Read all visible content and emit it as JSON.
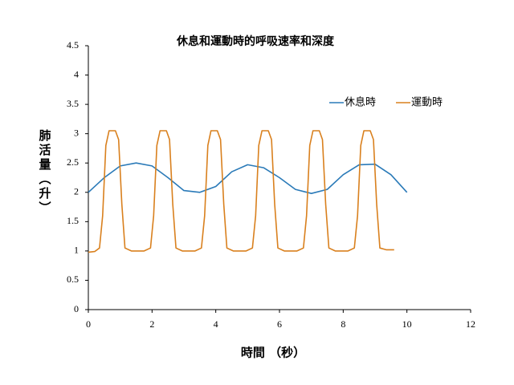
{
  "chart_data": {
    "type": "line",
    "title": "休息和運動時的呼吸速率和深度",
    "x_label": "時間 （秒）",
    "y_label": "肺活量（升）",
    "xlim": [
      0,
      12
    ],
    "xticks": [
      0,
      2,
      4,
      6,
      8,
      10,
      12
    ],
    "ylim": [
      0,
      4.5
    ],
    "yticks": [
      0,
      0.5,
      1,
      1.5,
      2,
      2.5,
      3,
      3.5,
      4,
      4.5
    ],
    "grid": false,
    "legend": "upper right",
    "series": [
      {
        "name": "休息時",
        "color": "#2a7ab8",
        "x": [
          0,
          0.5,
          1,
          1.5,
          2,
          2.5,
          3,
          3.5,
          4,
          4.5,
          5,
          5.5,
          6,
          6.5,
          7,
          7.5,
          8,
          8.5,
          9,
          9.5,
          10
        ],
        "values": [
          2.0,
          2.25,
          2.45,
          2.5,
          2.45,
          2.25,
          2.03,
          2.0,
          2.1,
          2.35,
          2.47,
          2.42,
          2.25,
          2.05,
          1.98,
          2.05,
          2.3,
          2.47,
          2.48,
          2.3,
          2.0
        ]
      },
      {
        "name": "運動時",
        "color": "#d9801e",
        "x": [
          0,
          0.2,
          0.35,
          0.45,
          0.55,
          0.65,
          0.85,
          0.95,
          1.05,
          1.15,
          1.35,
          1.75,
          1.95,
          2.05,
          2.15,
          2.25,
          2.45,
          2.55,
          2.65,
          2.75,
          2.95,
          3.35,
          3.55,
          3.65,
          3.75,
          3.85,
          4.05,
          4.15,
          4.25,
          4.35,
          4.55,
          4.95,
          5.15,
          5.25,
          5.35,
          5.45,
          5.65,
          5.75,
          5.85,
          5.95,
          6.15,
          6.55,
          6.75,
          6.85,
          6.95,
          7.05,
          7.25,
          7.35,
          7.45,
          7.55,
          7.75,
          8.15,
          8.35,
          8.45,
          8.55,
          8.65,
          8.85,
          8.95,
          9.05,
          9.15,
          9.35,
          9.6
        ],
        "values": [
          0.98,
          0.99,
          1.05,
          1.6,
          2.8,
          3.05,
          3.05,
          2.9,
          1.8,
          1.05,
          1.0,
          1.0,
          1.05,
          1.6,
          2.8,
          3.05,
          3.05,
          2.9,
          1.8,
          1.05,
          1.0,
          1.0,
          1.05,
          1.6,
          2.8,
          3.05,
          3.05,
          2.9,
          1.8,
          1.05,
          1.0,
          1.0,
          1.05,
          1.6,
          2.8,
          3.05,
          3.05,
          2.9,
          1.8,
          1.05,
          1.0,
          1.0,
          1.05,
          1.6,
          2.8,
          3.05,
          3.05,
          2.9,
          1.8,
          1.05,
          1.0,
          1.0,
          1.05,
          1.6,
          2.8,
          3.05,
          3.05,
          2.9,
          1.8,
          1.05,
          1.02,
          1.02
        ]
      }
    ]
  }
}
